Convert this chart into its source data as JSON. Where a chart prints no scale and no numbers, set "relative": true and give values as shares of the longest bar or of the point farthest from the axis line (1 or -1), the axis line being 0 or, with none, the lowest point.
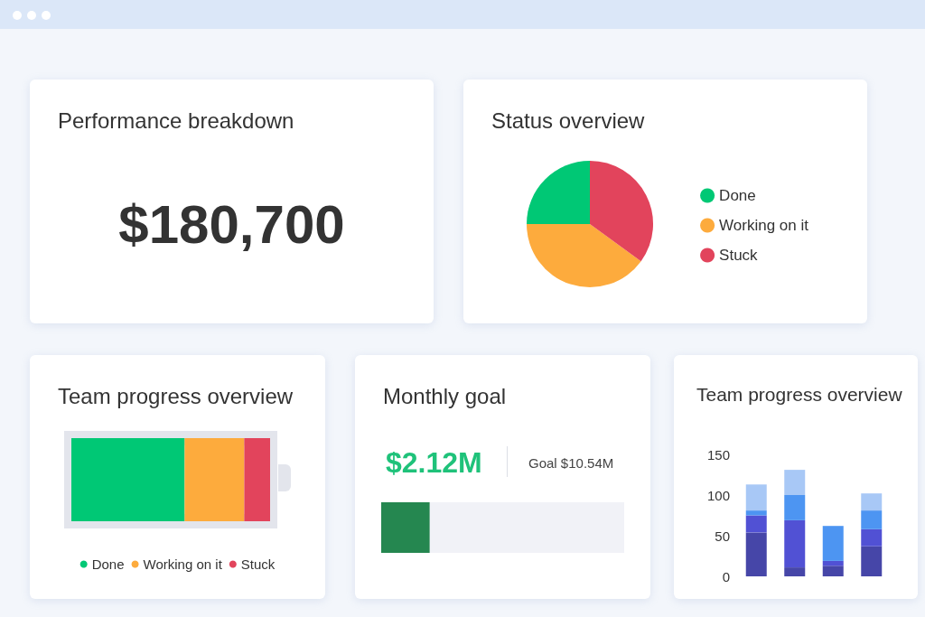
{
  "chart_data": [
    {
      "type": "other",
      "title": "Performance breakdown",
      "annotations": [
        "$180,700"
      ]
    },
    {
      "type": "pie",
      "title": "Status overview",
      "categories": [
        "Done",
        "Working on it",
        "Stuck"
      ],
      "values": [
        25,
        40,
        35
      ],
      "colors": [
        "#00c875",
        "#fdab3d",
        "#e2445c"
      ],
      "legend": "right"
    },
    {
      "type": "bar",
      "title": "Team progress overview",
      "orientation": "horizontal",
      "stacked": true,
      "relative": true,
      "categories": [
        null
      ],
      "legend": "bottom",
      "series": [
        {
          "name": "Done",
          "color": "#00c875",
          "values": [
            0.57
          ]
        },
        {
          "name": "Working on it",
          "color": "#fdab3d",
          "values": [
            0.3
          ]
        },
        {
          "name": "Stuck",
          "color": "#e2445c",
          "values": [
            0.13
          ]
        }
      ]
    },
    {
      "type": "bar",
      "title": "Monthly goal",
      "orientation": "horizontal",
      "categories": [
        null
      ],
      "stacked": true,
      "relative": true,
      "series": [
        {
          "color": "#258750",
          "values": [
            0.2
          ]
        },
        {
          "color": "#f1f2f7",
          "values": [
            0.8
          ]
        }
      ],
      "annotations": [
        "$2.12M",
        "Goal $10.54M"
      ]
    },
    {
      "type": "bar",
      "title": "Team progress overview",
      "stacked": true,
      "categories": [
        null,
        null,
        null,
        null
      ],
      "ylim": [
        0,
        150
      ],
      "yticks": [
        0,
        50,
        100,
        150
      ],
      "grid": false,
      "tick_labels": "y",
      "series": [
        {
          "color": "#4646a8",
          "values": [
            54,
            11,
            13,
            37
          ]
        },
        {
          "color": "#5151d4",
          "values": [
            21,
            58,
            6,
            21
          ]
        },
        {
          "color": "#4d95f2",
          "values": [
            6,
            31,
            43,
            23
          ]
        },
        {
          "color": "#a8c8f6",
          "values": [
            32,
            31,
            0,
            21
          ]
        }
      ]
    }
  ]
}
